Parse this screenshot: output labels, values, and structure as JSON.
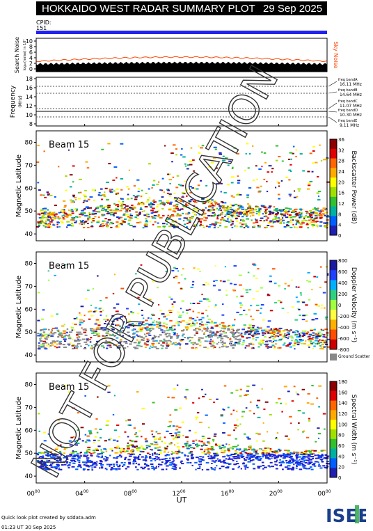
{
  "header": {
    "title": "HOKKAIDO WEST RADAR SUMMARY PLOT",
    "date": "29 Sep 2025"
  },
  "cpid": {
    "label": "CPID:",
    "value": "151"
  },
  "noise_panel": {
    "ylabel": "Search Noise",
    "ysub": "log₁₀(noise) in 10⁵",
    "yticks": [
      "10",
      "8",
      "6",
      "4",
      "2",
      "0"
    ],
    "right_label": "Sky Noise",
    "sky_color": "#ff4400"
  },
  "freq_panel": {
    "ylabel": "Frequency",
    "yunit": "(MHz)",
    "yticks": [
      "18",
      "16",
      "14",
      "12",
      "10",
      "8"
    ],
    "bands": [
      {
        "name": "freq bandA",
        "value": "16.11 MHz"
      },
      {
        "name": "freq bandB",
        "value": "14.64 MHz"
      },
      {
        "name": "freq bandC",
        "value": "11.07 MHz"
      },
      {
        "name": "freq bandD",
        "value": "10.30 MHz"
      },
      {
        "name": "freq bandE",
        "value": "9.11 MHz"
      }
    ]
  },
  "chart_data": [
    {
      "type": "heatmap",
      "title": "Beam 15",
      "ylabel": "Magnetic Latitude",
      "ylim": [
        37,
        85
      ],
      "yticks": [
        40,
        50,
        60,
        70,
        80
      ],
      "colorbar": {
        "label": "Backscatter Power (dB)",
        "ticks": [
          "36",
          "32",
          "28",
          "24",
          "20",
          "16",
          "12",
          "8",
          "4",
          "0"
        ]
      }
    },
    {
      "type": "heatmap",
      "title": "Beam 15",
      "ylabel": "Magnetic Latitude",
      "ylim": [
        37,
        85
      ],
      "yticks": [
        40,
        50,
        60,
        70,
        80
      ],
      "colorbar": {
        "label": "Doppler Velocity (m s⁻¹)",
        "ticks": [
          "800",
          "600",
          "400",
          "200",
          "0",
          "-200",
          "-400",
          "-600",
          "-800"
        ],
        "ground": "Ground Scatter"
      }
    },
    {
      "type": "heatmap",
      "title": "Beam 15",
      "ylabel": "Magnetic Latitude",
      "ylim": [
        37,
        85
      ],
      "yticks": [
        40,
        50,
        60,
        70,
        80
      ],
      "colorbar": {
        "label": "Spectral Width (m s⁻¹)",
        "ticks": [
          "180",
          "160",
          "140",
          "120",
          "100",
          "80",
          "60",
          "40",
          "20",
          "0"
        ]
      }
    }
  ],
  "xaxis": {
    "label": "UT",
    "ticks": [
      {
        "h": "00",
        "m": "00"
      },
      {
        "h": "04",
        "m": "00"
      },
      {
        "h": "08",
        "m": "00"
      },
      {
        "h": "12",
        "m": "00"
      },
      {
        "h": "16",
        "m": "00"
      },
      {
        "h": "20",
        "m": "00"
      },
      {
        "h": "00",
        "m": "00"
      }
    ]
  },
  "footer": {
    "credit": "Quick look plot created by sddata.adm",
    "timestamp": "01:23 UT 30 Sep 2025"
  },
  "logo": {
    "text": "ISEE"
  },
  "watermark": "NOT FOR PUBLICATION"
}
